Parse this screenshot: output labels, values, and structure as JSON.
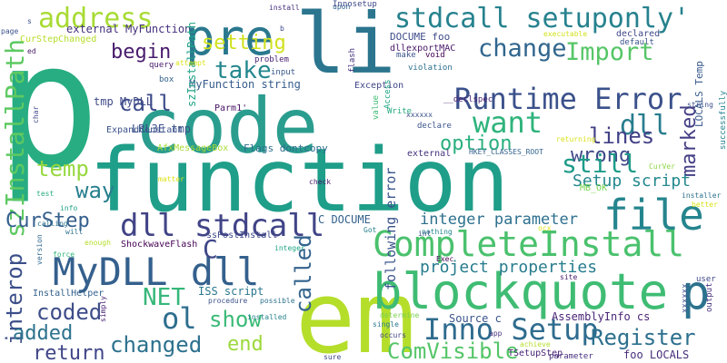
{
  "words": [
    {
      "text": "p",
      "color": "#27ad81"
    },
    {
      "text": "code",
      "color": "#2a9d8e"
    },
    {
      "text": "function",
      "color": "#1f9e89"
    },
    {
      "text": "li",
      "color": "#2b758e"
    },
    {
      "text": "em",
      "color": "#b5de2b"
    },
    {
      "text": "blockquote",
      "color": "#3fbc73"
    },
    {
      "text": "p",
      "color": "#2c728e"
    },
    {
      "text": "pre",
      "color": "#2a788e"
    },
    {
      "text": "file",
      "color": "#25858e"
    },
    {
      "text": "MyDLL dll",
      "color": "#34608d"
    },
    {
      "text": "CompleteInstall",
      "color": "#4ac16d"
    },
    {
      "text": "Runtime Error",
      "color": "#3b518b"
    },
    {
      "text": "stdcall setuponly'",
      "color": "#26828e"
    },
    {
      "text": "dll stdcall",
      "color": "#414487"
    },
    {
      "text": "Inno Setup",
      "color": "#2f6c8e"
    },
    {
      "text": "address",
      "color": "#a8db34"
    },
    {
      "text": "want",
      "color": "#2fb47c"
    },
    {
      "text": "change",
      "color": "#31668e"
    },
    {
      "text": "Import",
      "color": "#56c667"
    },
    {
      "text": "szInstallPath",
      "color": "#5ec962"
    },
    {
      "text": "dll",
      "color": "#287d8e"
    },
    {
      "text": "interop",
      "color": "#3c4f8a"
    },
    {
      "text": "Register",
      "color": "#2d708e"
    },
    {
      "text": "CurStep",
      "color": "#355f8d"
    },
    {
      "text": "called",
      "color": "#33638d"
    },
    {
      "text": "lines",
      "color": "#424086"
    },
    {
      "text": "wrong",
      "color": "#3e4989"
    },
    {
      "text": "marked",
      "color": "#433e85"
    },
    {
      "text": "still",
      "color": "#1e9c89"
    },
    {
      "text": "ComVisible",
      "color": "#54c568"
    },
    {
      "text": "take",
      "color": "#24878e"
    },
    {
      "text": "setting",
      "color": "#d0e11c"
    },
    {
      "text": "option",
      "color": "#2ab07f"
    },
    {
      "text": "call",
      "color": "#3e4c8a"
    },
    {
      "text": "temp",
      "color": "#97d83f"
    },
    {
      "text": "way",
      "color": "#277f8e"
    },
    {
      "text": "begin",
      "color": "#481b6d"
    },
    {
      "text": "coded",
      "color": "#3d4d8a"
    },
    {
      "text": "ol",
      "color": "#2e6e8e"
    },
    {
      "text": "NET",
      "color": "#35b779"
    },
    {
      "text": "show",
      "color": "#3aba76"
    },
    {
      "text": "changed",
      "color": "#2d718e"
    },
    {
      "text": "end",
      "color": "#9bd93c"
    },
    {
      "text": "return",
      "color": "#404588"
    },
    {
      "text": "added",
      "color": "#2c738e"
    },
    {
      "text": "C",
      "color": "#3f4788"
    },
    {
      "text": "Setup script",
      "color": "#23888e"
    },
    {
      "text": "integer parameter",
      "color": "#2d708e"
    },
    {
      "text": "project properties",
      "color": "#287c8e"
    },
    {
      "text": "following error",
      "color": "#3a548c"
    },
    {
      "text": "MyFunction string",
      "color": "#365c8d"
    },
    {
      "text": "tmp MyDLL",
      "color": "#3e4a89"
    },
    {
      "text": "external MyFunction",
      "color": "#46317e"
    },
    {
      "text": "C DOCUME",
      "color": "#34618d"
    },
    {
      "text": "LRL3E tmp",
      "color": "#3b528b"
    },
    {
      "text": "AssemblyInfo cs",
      "color": "#482475"
    },
    {
      "text": "Source c",
      "color": "#3a548c"
    },
    {
      "text": "ISS script",
      "color": "#2a788e"
    },
    {
      "text": "LOCALS Temp",
      "color": "#38598c"
    },
    {
      "text": "foo LOCALS",
      "color": "#472d7b"
    },
    {
      "text": "Flags dontcopy",
      "color": "#2e6e8e"
    },
    {
      "text": "Exception",
      "color": "#404688"
    },
    {
      "text": "szInstallPath",
      "color": "#20a386"
    },
    {
      "text": "DOCUME foo",
      "color": "#3e4c8a"
    },
    {
      "text": "dllexportMAC",
      "color": "#481769"
    },
    {
      "text": "Parm1'",
      "color": "#471365"
    },
    {
      "text": "ExpandConstant",
      "color": "#3b528b"
    },
    {
      "text": "AfxMessageBox",
      "color": "#a8db34"
    },
    {
      "text": "ShockwaveFlash",
      "color": "#440154"
    },
    {
      "text": "ssPostInstall",
      "color": "#3e4989"
    },
    {
      "text": "InstallHelper",
      "color": "#34618d"
    },
    {
      "text": "HKEY_CLASSES_ROOT",
      "color": "#33638d"
    },
    {
      "text": "__declspec",
      "color": "#482173"
    },
    {
      "text": "CurStepChanged",
      "color": "#b5de2b"
    },
    {
      "text": "TSetupStep",
      "color": "#482475"
    },
    {
      "text": "MB_OK",
      "color": "#7ad151"
    },
    {
      "text": "Innosetup",
      "color": "#3e4989"
    },
    {
      "text": "xxxxxx",
      "color": "#3b528b"
    },
    {
      "text": "xxxxxx",
      "color": "#3b528b"
    },
    {
      "text": "successfully",
      "color": "#26828e"
    },
    {
      "text": "external",
      "color": "#46327e"
    },
    {
      "text": "declare",
      "color": "#3a548c"
    },
    {
      "text": "declared",
      "color": "#3f4889"
    },
    {
      "text": "default",
      "color": "#3b528b"
    },
    {
      "text": "input",
      "color": "#38598c"
    },
    {
      "text": "query",
      "color": "#48186a"
    },
    {
      "text": "box",
      "color": "#34618d"
    },
    {
      "text": "problem",
      "color": "#481f70"
    },
    {
      "text": "void",
      "color": "#440154"
    },
    {
      "text": "violation",
      "color": "#2c728e"
    },
    {
      "text": "Access",
      "color": "#22a785"
    },
    {
      "text": "Write",
      "color": "#25ab82"
    },
    {
      "text": "make",
      "color": "#3b528b"
    },
    {
      "text": "flash",
      "color": "#46317e"
    },
    {
      "text": "value",
      "color": "#3fbc73"
    },
    {
      "text": "executable",
      "color": "#d2e21b"
    },
    {
      "text": "installer",
      "color": "#2c728e"
    },
    {
      "text": "string",
      "color": "#3b528b"
    },
    {
      "text": "returning",
      "color": "#d8e219"
    },
    {
      "text": "CurVer",
      "color": "#8fd744"
    },
    {
      "text": "better",
      "color": "#dae319"
    },
    {
      "text": "ocx",
      "color": "#dde318"
    },
    {
      "text": "site",
      "color": "#48186a"
    },
    {
      "text": "user",
      "color": "#3f4788"
    },
    {
      "text": "output",
      "color": "#46327e"
    },
    {
      "text": "app",
      "color": "#46317e"
    },
    {
      "text": "achieve",
      "color": "#b5de2b"
    },
    {
      "text": "parameter",
      "color": "#46307e"
    },
    {
      "text": "Exec",
      "color": "#440154"
    },
    {
      "text": "Got",
      "color": "#26828e"
    },
    {
      "text": "nothing",
      "color": "#24878e"
    },
    {
      "text": "int",
      "color": "#3b528b"
    },
    {
      "text": "check",
      "color": "#48186a"
    },
    {
      "text": "determine",
      "color": "#7ad151"
    },
    {
      "text": "single",
      "color": "#2a788e"
    },
    {
      "text": "occurs",
      "color": "#414487"
    },
    {
      "text": "installed",
      "color": "#26828e"
    },
    {
      "text": "possible",
      "color": "#2c728e"
    },
    {
      "text": "procedure",
      "color": "#3b528b"
    },
    {
      "text": "simply",
      "color": "#482173"
    },
    {
      "text": "integer",
      "color": "#22a785"
    },
    {
      "text": "enough",
      "color": "#b5de2b"
    },
    {
      "text": "force",
      "color": "#35b779"
    },
    {
      "text": "will",
      "color": "#2c728e"
    },
    {
      "text": "version",
      "color": "#31688e"
    },
    {
      "text": "sure",
      "color": "#3e4989"
    },
    {
      "text": "info",
      "color": "#20a386"
    },
    {
      "text": "calling",
      "color": "#2c728e"
    },
    {
      "text": "test",
      "color": "#27ad81"
    },
    {
      "text": "matter",
      "color": "#dde318"
    },
    {
      "text": "char",
      "color": "#3e4989"
    },
    {
      "text": "ed",
      "color": "#481769"
    },
    {
      "text": "s",
      "color": "#3b528b"
    },
    {
      "text": "page",
      "color": "#3b528b"
    },
    {
      "text": "install",
      "color": "#46317e"
    },
    {
      "text": "upon",
      "color": "#34618d"
    },
    {
      "text": "attempt",
      "color": "#dde318"
    },
    {
      "text": "b",
      "color": "#3e4989"
    }
  ]
}
